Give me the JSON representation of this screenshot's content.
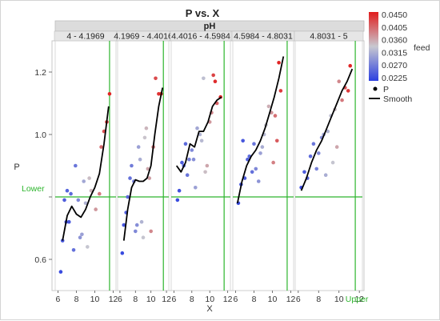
{
  "chart_data": {
    "type": "scatter",
    "title": "P vs. X",
    "group_by_title": "pH",
    "panels": [
      {
        "label": "4 - 4.1969",
        "points": [
          {
            "x": 6.3,
            "y": 0.56,
            "feed": 0.0235
          },
          {
            "x": 6.5,
            "y": 0.66,
            "feed": 0.0245
          },
          {
            "x": 6.7,
            "y": 0.79,
            "feed": 0.025
          },
          {
            "x": 6.9,
            "y": 0.72,
            "feed": 0.024
          },
          {
            "x": 7.0,
            "y": 0.82,
            "feed": 0.0255
          },
          {
            "x": 7.2,
            "y": 0.72,
            "feed": 0.0245
          },
          {
            "x": 7.4,
            "y": 0.81,
            "feed": 0.026
          },
          {
            "x": 7.7,
            "y": 0.63,
            "feed": 0.0265
          },
          {
            "x": 7.9,
            "y": 0.9,
            "feed": 0.027
          },
          {
            "x": 8.2,
            "y": 0.79,
            "feed": 0.0285
          },
          {
            "x": 8.4,
            "y": 0.67,
            "feed": 0.0295
          },
          {
            "x": 8.6,
            "y": 0.68,
            "feed": 0.0305
          },
          {
            "x": 8.8,
            "y": 0.85,
            "feed": 0.031
          },
          {
            "x": 9.0,
            "y": 0.78,
            "feed": 0.032
          },
          {
            "x": 9.2,
            "y": 0.64,
            "feed": 0.0335
          },
          {
            "x": 9.4,
            "y": 0.86,
            "feed": 0.0345
          },
          {
            "x": 9.6,
            "y": 0.82,
            "feed": 0.035
          },
          {
            "x": 10.1,
            "y": 0.76,
            "feed": 0.037
          },
          {
            "x": 10.5,
            "y": 0.81,
            "feed": 0.039
          },
          {
            "x": 10.7,
            "y": 0.96,
            "feed": 0.04
          },
          {
            "x": 11.0,
            "y": 1.01,
            "feed": 0.0415
          },
          {
            "x": 11.3,
            "y": 1.04,
            "feed": 0.043
          },
          {
            "x": 11.6,
            "y": 1.13,
            "feed": 0.0445
          }
        ],
        "smooth": [
          [
            6.5,
            0.66
          ],
          [
            7.0,
            0.74
          ],
          [
            7.5,
            0.77
          ],
          [
            8.0,
            0.745
          ],
          [
            8.5,
            0.735
          ],
          [
            9.0,
            0.76
          ],
          [
            9.5,
            0.8
          ],
          [
            10.0,
            0.83
          ],
          [
            10.5,
            0.875
          ],
          [
            11.0,
            0.97
          ],
          [
            11.5,
            1.09
          ]
        ]
      },
      {
        "label": "4.1969 - 4.4016",
        "points": [
          {
            "x": 6.3,
            "y": 0.62,
            "feed": 0.0235
          },
          {
            "x": 6.5,
            "y": 0.71,
            "feed": 0.0245
          },
          {
            "x": 6.8,
            "y": 0.75,
            "feed": 0.025
          },
          {
            "x": 7.0,
            "y": 0.8,
            "feed": 0.026
          },
          {
            "x": 7.3,
            "y": 0.86,
            "feed": 0.0265
          },
          {
            "x": 7.5,
            "y": 0.9,
            "feed": 0.0275
          },
          {
            "x": 7.8,
            "y": 0.85,
            "feed": 0.028
          },
          {
            "x": 8.0,
            "y": 0.69,
            "feed": 0.0285
          },
          {
            "x": 8.2,
            "y": 0.71,
            "feed": 0.029
          },
          {
            "x": 8.4,
            "y": 0.96,
            "feed": 0.0305
          },
          {
            "x": 8.6,
            "y": 0.92,
            "feed": 0.0315
          },
          {
            "x": 8.8,
            "y": 0.72,
            "feed": 0.032
          },
          {
            "x": 9.0,
            "y": 0.67,
            "feed": 0.0335
          },
          {
            "x": 9.2,
            "y": 0.99,
            "feed": 0.034
          },
          {
            "x": 9.4,
            "y": 1.02,
            "feed": 0.035
          },
          {
            "x": 9.6,
            "y": 0.89,
            "feed": 0.036
          },
          {
            "x": 9.8,
            "y": 0.86,
            "feed": 0.0365
          },
          {
            "x": 10.0,
            "y": 0.69,
            "feed": 0.038
          },
          {
            "x": 10.3,
            "y": 0.96,
            "feed": 0.039
          },
          {
            "x": 10.6,
            "y": 1.18,
            "feed": 0.042
          },
          {
            "x": 11.0,
            "y": 1.13,
            "feed": 0.0435
          },
          {
            "x": 11.3,
            "y": 1.13,
            "feed": 0.0445
          }
        ],
        "smooth": [
          [
            6.5,
            0.66
          ],
          [
            7.0,
            0.76
          ],
          [
            7.5,
            0.83
          ],
          [
            8.0,
            0.855
          ],
          [
            8.5,
            0.85
          ],
          [
            9.0,
            0.85
          ],
          [
            9.5,
            0.86
          ],
          [
            10.0,
            0.9
          ],
          [
            10.5,
            1.0
          ],
          [
            11.0,
            1.09
          ],
          [
            11.5,
            1.15
          ]
        ]
      },
      {
        "label": "4.4016 - 4.5984",
        "points": [
          {
            "x": 6.4,
            "y": 0.79,
            "feed": 0.0235
          },
          {
            "x": 6.6,
            "y": 0.82,
            "feed": 0.024
          },
          {
            "x": 6.9,
            "y": 0.91,
            "feed": 0.025
          },
          {
            "x": 7.1,
            "y": 0.9,
            "feed": 0.0255
          },
          {
            "x": 7.3,
            "y": 0.97,
            "feed": 0.026
          },
          {
            "x": 7.5,
            "y": 0.87,
            "feed": 0.027
          },
          {
            "x": 7.7,
            "y": 0.92,
            "feed": 0.028
          },
          {
            "x": 8.0,
            "y": 0.95,
            "feed": 0.0285
          },
          {
            "x": 8.2,
            "y": 0.92,
            "feed": 0.029
          },
          {
            "x": 8.4,
            "y": 0.83,
            "feed": 0.0305
          },
          {
            "x": 8.6,
            "y": 1.02,
            "feed": 0.031
          },
          {
            "x": 8.9,
            "y": 1.0,
            "feed": 0.032
          },
          {
            "x": 9.1,
            "y": 0.98,
            "feed": 0.0325
          },
          {
            "x": 9.3,
            "y": 1.18,
            "feed": 0.033
          },
          {
            "x": 9.5,
            "y": 0.88,
            "feed": 0.0345
          },
          {
            "x": 9.7,
            "y": 0.9,
            "feed": 0.036
          },
          {
            "x": 10.0,
            "y": 1.04,
            "feed": 0.037
          },
          {
            "x": 10.2,
            "y": 1.07,
            "feed": 0.038
          },
          {
            "x": 10.4,
            "y": 1.19,
            "feed": 0.0425
          },
          {
            "x": 10.6,
            "y": 1.17,
            "feed": 0.044
          },
          {
            "x": 10.8,
            "y": 1.1,
            "feed": 0.0405
          },
          {
            "x": 11.2,
            "y": 1.12,
            "feed": 0.0445
          }
        ],
        "smooth": [
          [
            6.3,
            0.9
          ],
          [
            6.8,
            0.88
          ],
          [
            7.3,
            0.91
          ],
          [
            7.8,
            0.97
          ],
          [
            8.3,
            0.96
          ],
          [
            8.8,
            1.01
          ],
          [
            9.3,
            1.01
          ],
          [
            9.8,
            1.04
          ],
          [
            10.3,
            1.09
          ],
          [
            10.8,
            1.11
          ],
          [
            11.3,
            1.12
          ]
        ]
      },
      {
        "label": "4.5984 - 4.8031",
        "points": [
          {
            "x": 6.3,
            "y": 0.78,
            "feed": 0.0235
          },
          {
            "x": 6.6,
            "y": 0.84,
            "feed": 0.024
          },
          {
            "x": 6.8,
            "y": 0.98,
            "feed": 0.0245
          },
          {
            "x": 7.0,
            "y": 0.86,
            "feed": 0.025
          },
          {
            "x": 7.3,
            "y": 0.92,
            "feed": 0.0255
          },
          {
            "x": 7.5,
            "y": 0.93,
            "feed": 0.026
          },
          {
            "x": 7.8,
            "y": 0.88,
            "feed": 0.0265
          },
          {
            "x": 8.0,
            "y": 0.97,
            "feed": 0.027
          },
          {
            "x": 8.2,
            "y": 0.89,
            "feed": 0.0285
          },
          {
            "x": 8.5,
            "y": 0.85,
            "feed": 0.0295
          },
          {
            "x": 8.7,
            "y": 0.94,
            "feed": 0.0305
          },
          {
            "x": 8.9,
            "y": 0.96,
            "feed": 0.0315
          },
          {
            "x": 9.1,
            "y": 1.0,
            "feed": 0.0325
          },
          {
            "x": 9.3,
            "y": 1.03,
            "feed": 0.0335
          },
          {
            "x": 9.6,
            "y": 1.09,
            "feed": 0.0355
          },
          {
            "x": 9.9,
            "y": 1.07,
            "feed": 0.037
          },
          {
            "x": 10.1,
            "y": 0.91,
            "feed": 0.0385
          },
          {
            "x": 10.3,
            "y": 1.06,
            "feed": 0.0395
          },
          {
            "x": 10.5,
            "y": 0.98,
            "feed": 0.041
          },
          {
            "x": 10.7,
            "y": 1.23,
            "feed": 0.0445
          },
          {
            "x": 10.9,
            "y": 1.14,
            "feed": 0.043
          }
        ],
        "smooth": [
          [
            6.2,
            0.78
          ],
          [
            6.7,
            0.85
          ],
          [
            7.2,
            0.9
          ],
          [
            7.7,
            0.93
          ],
          [
            8.2,
            0.95
          ],
          [
            8.7,
            0.98
          ],
          [
            9.2,
            1.02
          ],
          [
            9.7,
            1.07
          ],
          [
            10.2,
            1.12
          ],
          [
            10.7,
            1.18
          ],
          [
            11.2,
            1.25
          ]
        ]
      },
      {
        "label": "4.8031 - 5",
        "points": [
          {
            "x": 6.3,
            "y": 0.83,
            "feed": 0.0235
          },
          {
            "x": 6.6,
            "y": 0.88,
            "feed": 0.025
          },
          {
            "x": 6.9,
            "y": 0.86,
            "feed": 0.0255
          },
          {
            "x": 7.2,
            "y": 0.93,
            "feed": 0.026
          },
          {
            "x": 7.5,
            "y": 0.97,
            "feed": 0.027
          },
          {
            "x": 7.8,
            "y": 0.89,
            "feed": 0.028
          },
          {
            "x": 8.0,
            "y": 0.94,
            "feed": 0.0285
          },
          {
            "x": 8.3,
            "y": 0.99,
            "feed": 0.029
          },
          {
            "x": 8.5,
            "y": 1.0,
            "feed": 0.0305
          },
          {
            "x": 8.7,
            "y": 0.87,
            "feed": 0.0315
          },
          {
            "x": 8.9,
            "y": 1.01,
            "feed": 0.032
          },
          {
            "x": 9.2,
            "y": 1.06,
            "feed": 0.033
          },
          {
            "x": 9.4,
            "y": 0.91,
            "feed": 0.0335
          },
          {
            "x": 9.6,
            "y": 1.08,
            "feed": 0.0345
          },
          {
            "x": 9.8,
            "y": 0.96,
            "feed": 0.036
          },
          {
            "x": 10.0,
            "y": 1.17,
            "feed": 0.038
          },
          {
            "x": 10.3,
            "y": 1.11,
            "feed": 0.039
          },
          {
            "x": 10.6,
            "y": 1.15,
            "feed": 0.0415
          },
          {
            "x": 10.9,
            "y": 1.14,
            "feed": 0.043
          },
          {
            "x": 11.1,
            "y": 1.22,
            "feed": 0.0445
          }
        ],
        "smooth": [
          [
            6.3,
            0.82
          ],
          [
            6.8,
            0.86
          ],
          [
            7.3,
            0.91
          ],
          [
            7.8,
            0.95
          ],
          [
            8.3,
            0.98
          ],
          [
            8.8,
            1.02
          ],
          [
            9.3,
            1.06
          ],
          [
            9.8,
            1.1
          ],
          [
            10.3,
            1.14
          ],
          [
            10.8,
            1.17
          ],
          [
            11.3,
            1.21
          ]
        ]
      }
    ],
    "xlabel": "X",
    "ylabel": "P",
    "xlim": [
      5.7,
      12.3
    ],
    "ylim": [
      0.5,
      1.3
    ],
    "x_ticks": [
      6,
      8,
      10,
      12
    ],
    "y_ticks": [
      0.6,
      0.8,
      1.0,
      1.2
    ],
    "y_tick_labels": [
      "0.6",
      "",
      "1.0",
      "1.2"
    ],
    "reference_lines": {
      "lower_y": 0.8,
      "lower_label": "Lower",
      "upper_x": 11.6,
      "upper_label": "Upper"
    },
    "color_scale": {
      "title": "feed",
      "labels": [
        "0.0450",
        "0.0405",
        "0.0360",
        "0.0315",
        "0.0270",
        "0.0225"
      ],
      "min": 0.0225,
      "max": 0.045,
      "colors": [
        "#2b3fe0",
        "#c8c8d0",
        "#e11d1d"
      ]
    },
    "legend": [
      {
        "symbol": "dot",
        "label": "P"
      },
      {
        "symbol": "line",
        "label": "Smooth"
      }
    ],
    "colors": {
      "reference": "#2db52d",
      "smooth": "#000000",
      "header_fill": "#dcdcdc"
    }
  }
}
